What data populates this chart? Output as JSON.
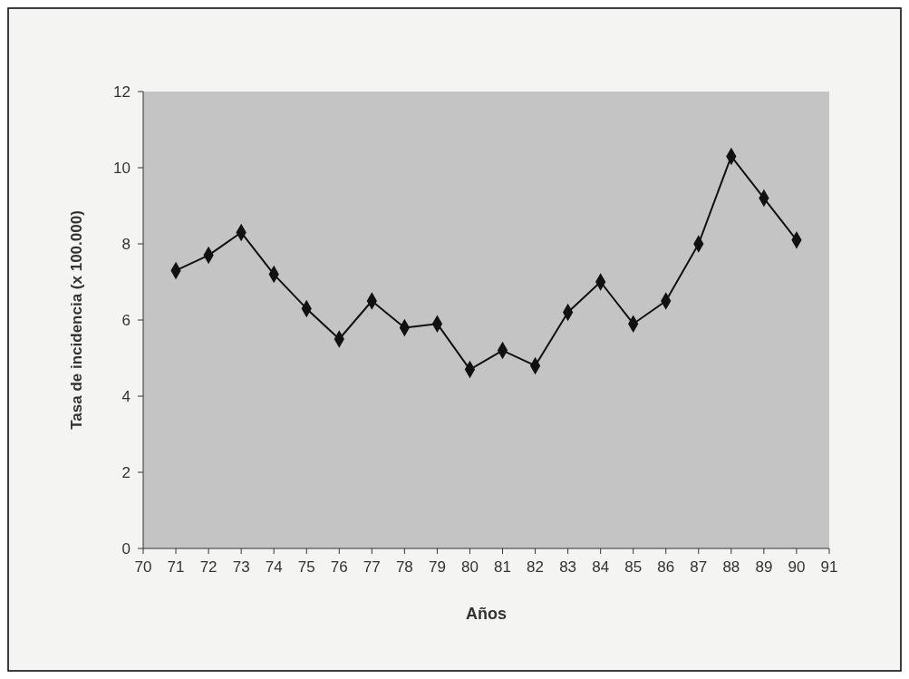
{
  "chart_data": {
    "type": "line",
    "xlabel": "Años",
    "ylabel": "Tasa de incidencia (x 100.000)",
    "x": [
      71,
      72,
      73,
      74,
      75,
      76,
      77,
      78,
      79,
      80,
      81,
      82,
      83,
      84,
      85,
      86,
      87,
      88,
      89,
      90
    ],
    "series": [
      {
        "color": "#111111",
        "values": [
          7.3,
          7.7,
          8.3,
          7.2,
          6.3,
          5.5,
          6.5,
          5.8,
          5.9,
          4.7,
          5.2,
          4.8,
          6.2,
          7.0,
          5.9,
          6.5,
          8.0,
          10.3,
          9.2,
          8.1
        ]
      }
    ],
    "xlim": [
      70,
      91
    ],
    "xticks": [
      70,
      71,
      72,
      73,
      74,
      75,
      76,
      77,
      78,
      79,
      80,
      81,
      82,
      83,
      84,
      85,
      86,
      87,
      88,
      89,
      90,
      91
    ],
    "ylim": [
      0,
      12
    ],
    "yticks": [
      0,
      2,
      4,
      6,
      8,
      10,
      12
    ],
    "marker": "diamond",
    "line_style": "solid"
  }
}
